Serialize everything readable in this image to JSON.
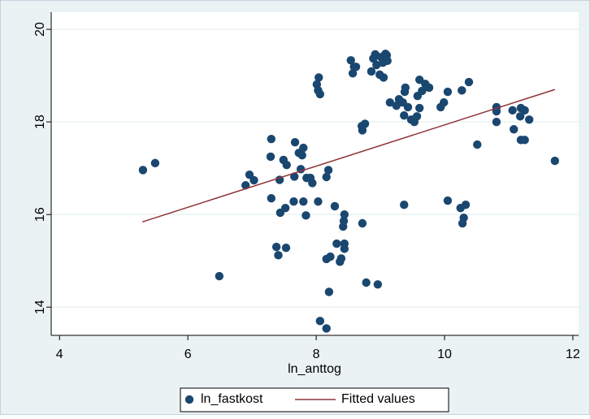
{
  "chart_data": {
    "type": "scatter",
    "xlabel": "ln_anttog",
    "xlim": [
      3.87,
      12.09
    ],
    "xticks": [
      4,
      6,
      8,
      10,
      12
    ],
    "ylim": [
      13.39,
      20.37
    ],
    "yticks": [
      14,
      16,
      18,
      20
    ],
    "grid": true,
    "legend": "bottom",
    "series": [
      {
        "name": "ln_fastkost",
        "type": "scatter",
        "color": "#1a476f",
        "x": [
          5.3,
          5.49,
          6.49,
          6.9,
          6.96,
          7.03,
          7.3,
          7.29,
          7.3,
          7.38,
          7.41,
          7.43,
          7.44,
          7.49,
          7.53,
          7.54,
          7.52,
          7.66,
          7.65,
          7.67,
          7.73,
          7.78,
          7.8,
          7.76,
          7.8,
          7.85,
          7.84,
          7.91,
          7.94,
          8.01,
          8.04,
          8.03,
          8.06,
          8.03,
          8.06,
          8.16,
          8.19,
          8.16,
          8.2,
          8.16,
          8.22,
          8.29,
          8.32,
          8.37,
          8.39,
          8.42,
          8.43,
          8.44,
          8.44,
          8.44,
          8.54,
          8.57,
          8.59,
          8.62,
          8.71,
          8.72,
          8.76,
          8.72,
          8.78,
          8.89,
          8.92,
          8.94,
          8.96,
          8.86,
          8.99,
          9.01,
          9.04,
          9.05,
          9.1,
          9.11,
          9.08,
          9.15,
          9.25,
          9.29,
          9.35,
          9.38,
          9.39,
          9.37,
          9.37,
          9.43,
          9.48,
          9.53,
          9.57,
          9.61,
          9.58,
          9.61,
          9.65,
          9.7,
          9.76,
          9.94,
          9.99,
          10.05,
          10.05,
          10.27,
          10.38,
          10.25,
          10.33,
          10.3,
          10.28,
          10.51,
          10.81,
          10.81,
          10.81,
          11.06,
          11.08,
          11.19,
          11.18,
          11.25,
          11.19,
          11.25,
          11.32,
          11.72
        ],
        "values": [
          16.96,
          17.11,
          14.67,
          16.63,
          16.86,
          16.74,
          17.63,
          17.25,
          16.35,
          15.3,
          15.12,
          16.75,
          16.04,
          17.18,
          15.28,
          17.07,
          16.14,
          16.82,
          16.28,
          17.56,
          17.33,
          17.28,
          17.44,
          16.98,
          16.28,
          16.79,
          15.98,
          16.79,
          16.68,
          18.81,
          18.96,
          18.68,
          18.6,
          16.28,
          13.7,
          16.81,
          16.96,
          13.54,
          14.33,
          15.04,
          15.09,
          16.18,
          15.37,
          14.98,
          15.05,
          15.74,
          15.86,
          15.37,
          15.26,
          16.0,
          19.33,
          19.05,
          19.19,
          19.19,
          17.91,
          17.82,
          17.96,
          15.81,
          14.53,
          19.37,
          19.46,
          19.23,
          14.49,
          19.09,
          19.02,
          19.4,
          19.28,
          18.96,
          19.44,
          19.32,
          19.47,
          18.42,
          18.35,
          18.49,
          18.42,
          18.65,
          18.74,
          18.14,
          16.21,
          18.32,
          18.05,
          18.0,
          18.12,
          18.3,
          18.56,
          18.91,
          18.67,
          18.82,
          18.74,
          18.32,
          18.42,
          18.65,
          16.3,
          18.68,
          18.86,
          16.14,
          16.21,
          15.93,
          15.81,
          17.51,
          18.32,
          18.23,
          18.0,
          18.25,
          17.84,
          18.3,
          18.12,
          18.25,
          17.61,
          17.61,
          18.05,
          17.16
        ]
      },
      {
        "name": "Fitted values",
        "type": "line",
        "color": "#90353b",
        "x": [
          5.29,
          11.72
        ],
        "values": [
          15.84,
          18.7
        ]
      }
    ]
  }
}
